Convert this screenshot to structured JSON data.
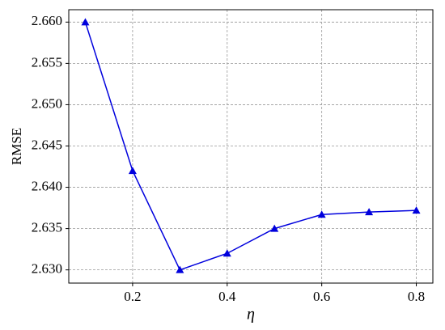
{
  "chart_data": {
    "type": "line",
    "x_label": "η",
    "y_label": "RMSE",
    "x": [
      0.1,
      0.2,
      0.3,
      0.4,
      0.5,
      0.6,
      0.7,
      0.8
    ],
    "series": [
      {
        "color": "#0000dd",
        "marker": "triangle",
        "values": [
          2.66,
          2.642,
          2.63,
          2.632,
          2.635,
          2.6367,
          2.637,
          2.6372
        ]
      }
    ],
    "xlim": [
      0.065,
      0.835
    ],
    "ylim": [
      2.6284,
      2.6615
    ],
    "xticks": [
      0.2,
      0.4,
      0.6,
      0.8
    ],
    "yticks": [
      {
        "value": 2.63,
        "label": "2.630"
      },
      {
        "value": 2.635,
        "label": "2.635"
      },
      {
        "value": 2.64,
        "label": "2.640"
      },
      {
        "value": 2.645,
        "label": "2.645"
      },
      {
        "value": 2.65,
        "label": "2.650"
      },
      {
        "value": 2.655,
        "label": "2.655"
      },
      {
        "value": 2.66,
        "label": "2.660"
      }
    ],
    "grid": true
  }
}
